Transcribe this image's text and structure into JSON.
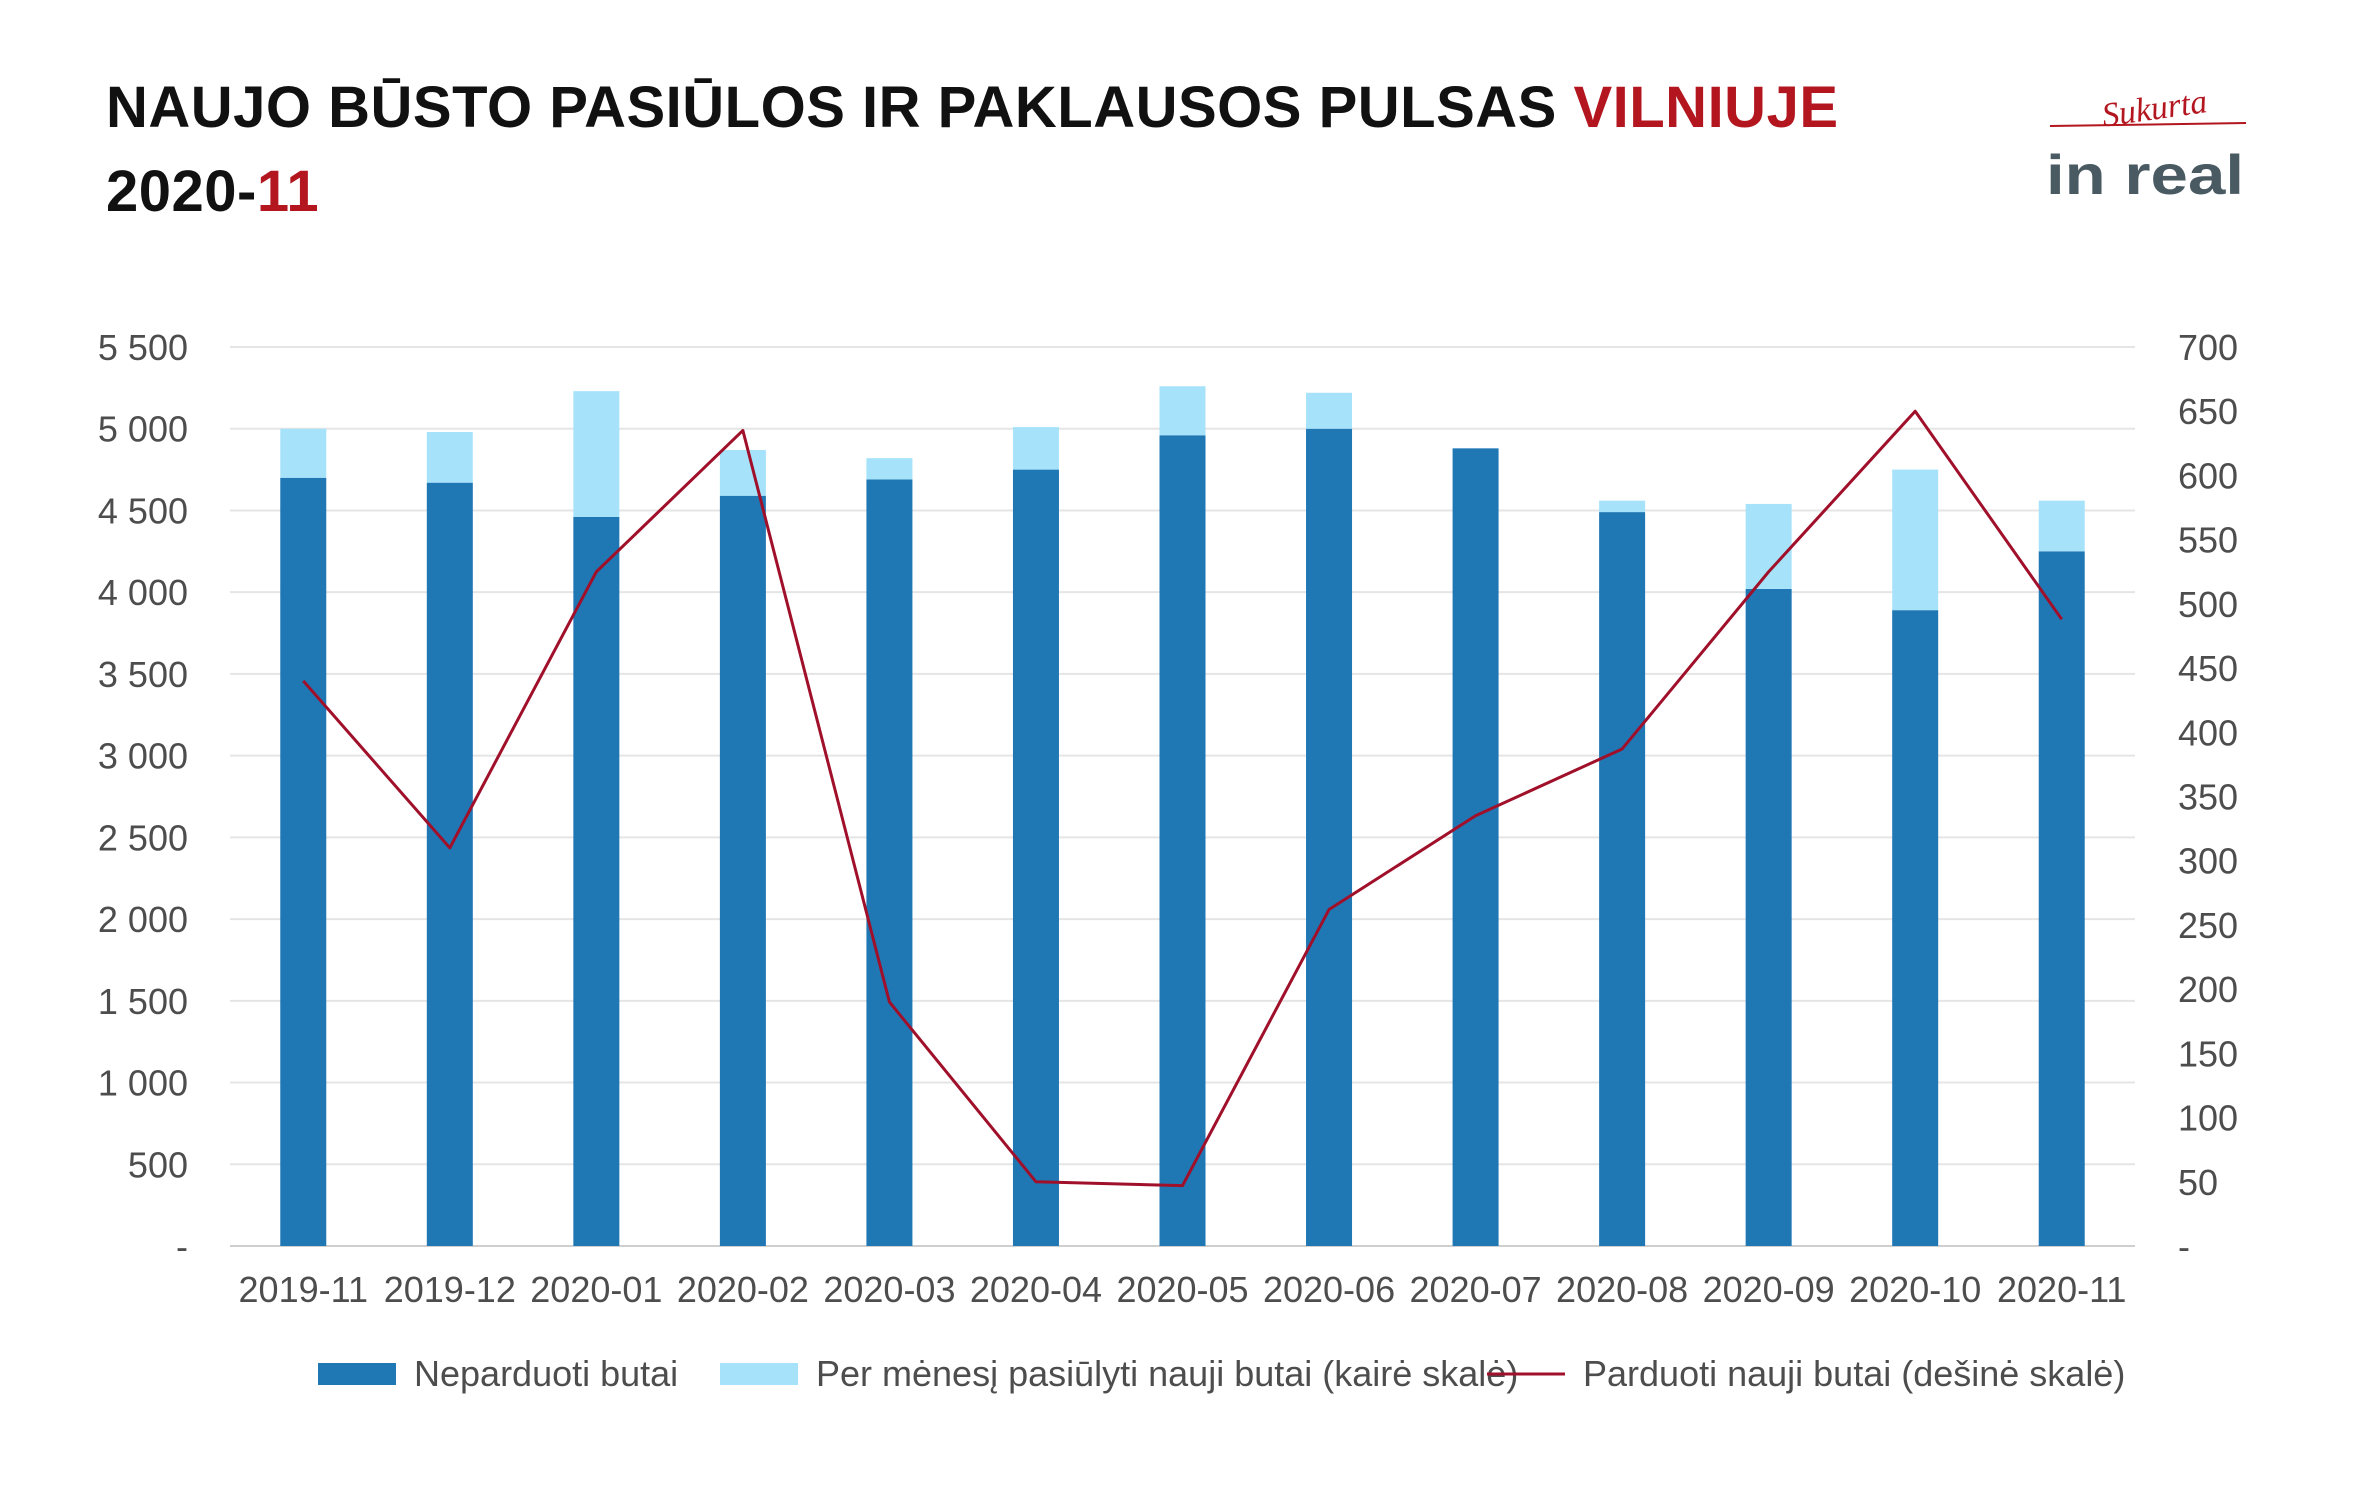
{
  "header": {
    "title_line1_main": "NAUJO BŪSTO PASIŪLOS IR PAKLAUSOS PULSAS",
    "title_line1_accent": "VILNIUJE",
    "title_line2_main": "2020-",
    "title_line2_accent": "11"
  },
  "logo": {
    "script_text": "Sukurta",
    "brand_text": "in real"
  },
  "colors": {
    "accent_red": "#b3161f",
    "bar_dark": "#1f77b4",
    "bar_light": "#a6e3fb",
    "line": "#a0102a",
    "grid": "#e5e5e5",
    "text": "#4d4d4d"
  },
  "chart_data": {
    "type": "bar",
    "categories": [
      "2019-11",
      "2019-12",
      "2020-01",
      "2020-02",
      "2020-03",
      "2020-04",
      "2020-05",
      "2020-06",
      "2020-07",
      "2020-08",
      "2020-09",
      "2020-10",
      "2020-11"
    ],
    "series": [
      {
        "name": "Neparduoti butai",
        "type": "bar",
        "stack": "left",
        "axis": "left",
        "values": [
          4700,
          4670,
          4460,
          4590,
          4690,
          4750,
          4960,
          5000,
          4880,
          4490,
          4020,
          3890,
          4250
        ]
      },
      {
        "name": "Per mėnesį pasiūlyti nauji butai (kairė skalė)",
        "type": "bar",
        "stack": "left",
        "axis": "left",
        "values": [
          300,
          310,
          770,
          280,
          130,
          260,
          300,
          220,
          0,
          70,
          520,
          860,
          310
        ]
      },
      {
        "name": "Parduoti nauji butai (dešinė skalė)",
        "type": "line",
        "axis": "right",
        "values": [
          440,
          310,
          525,
          635,
          190,
          50,
          47,
          262,
          335,
          387,
          525,
          650,
          488
        ]
      }
    ],
    "left_axis": {
      "min": 0,
      "max": 5500,
      "step": 500,
      "tick_labels": [
        "-",
        "500",
        "1 000",
        "1 500",
        "2 000",
        "2 500",
        "3 000",
        "3 500",
        "4 000",
        "4 500",
        "5 000",
        "5 500"
      ]
    },
    "right_axis": {
      "min": 0,
      "max": 700,
      "step": 50,
      "tick_labels": [
        "-",
        "50",
        "100",
        "150",
        "200",
        "250",
        "300",
        "350",
        "400",
        "450",
        "500",
        "550",
        "600",
        "650",
        "700"
      ]
    },
    "grid": true,
    "legend_position": "bottom"
  }
}
